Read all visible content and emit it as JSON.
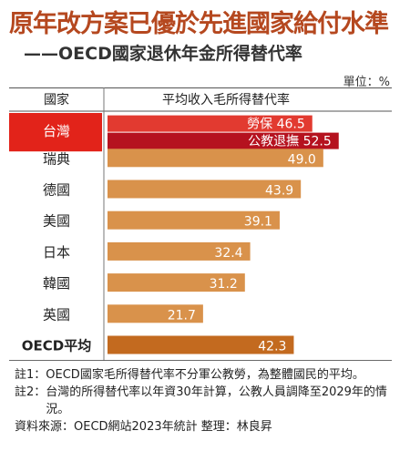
{
  "title": "原年改方案已優於先進國家給付水準",
  "subtitle": "——OECD國家退休年金所得替代率",
  "unit": "單位：%",
  "chart_data": {
    "type": "bar",
    "orientation": "horizontal",
    "col_headers": [
      "國家",
      "平均收入毛所得替代率"
    ],
    "xlim": [
      0,
      60
    ],
    "rows": [
      {
        "label": "台灣",
        "highlight": true,
        "bars": [
          {
            "name": "勞保",
            "value": 46.5,
            "color": "#e23a30"
          },
          {
            "name": "公教退撫",
            "value": 52.5,
            "color": "#b5121f"
          }
        ]
      },
      {
        "label": "瑞典",
        "bars": [
          {
            "value": 49.0,
            "color": "#d9924b"
          }
        ]
      },
      {
        "label": "德國",
        "bars": [
          {
            "value": 43.9,
            "color": "#d9924b"
          }
        ]
      },
      {
        "label": "美國",
        "bars": [
          {
            "value": 39.1,
            "color": "#d9924b"
          }
        ]
      },
      {
        "label": "日本",
        "bars": [
          {
            "value": 32.4,
            "color": "#d9924b"
          }
        ]
      },
      {
        "label": "韓國",
        "bars": [
          {
            "value": 31.2,
            "color": "#d9924b"
          }
        ]
      },
      {
        "label": "英國",
        "bars": [
          {
            "value": 21.7,
            "color": "#d9924b"
          }
        ]
      },
      {
        "label": "OECD平均",
        "bold": true,
        "bars": [
          {
            "value": 42.3,
            "color": "#c36a1f"
          }
        ]
      }
    ]
  },
  "notes": [
    {
      "label": "註1：",
      "text": "OECD國家毛所得替代率不分軍公教勞，為整體國民的平均。"
    },
    {
      "label": "註2：",
      "text": "台灣的所得替代率以年資30年計算，公教人員調降至2029年的情況。"
    }
  ],
  "source": "資料來源：OECD網站2023年統計 整理：林良昇"
}
